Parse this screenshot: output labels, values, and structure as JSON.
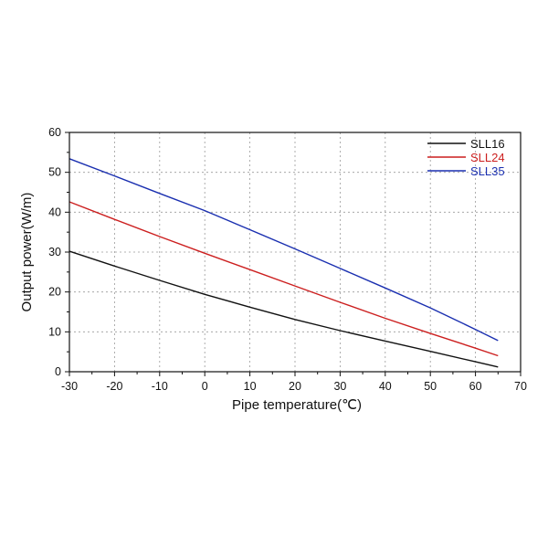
{
  "chart_data": {
    "type": "line",
    "xlabel": "Pipe temperature(℃)",
    "ylabel": "Output power(W/m)",
    "xlim": [
      -30,
      70
    ],
    "ylim": [
      0,
      60
    ],
    "xticks": [
      -30,
      -20,
      -10,
      0,
      10,
      20,
      30,
      40,
      50,
      60,
      70
    ],
    "yticks": [
      0,
      10,
      20,
      30,
      40,
      50,
      60
    ],
    "grid": true,
    "legend_position": "top-right",
    "series": [
      {
        "name": "SLL16",
        "color": "#111111",
        "x": [
          -30,
          -20,
          -10,
          0,
          10,
          20,
          30,
          40,
          50,
          60,
          65
        ],
        "y": [
          30.2,
          26.5,
          22.9,
          19.4,
          16.2,
          13.1,
          10.3,
          7.7,
          5.1,
          2.5,
          1.2
        ]
      },
      {
        "name": "SLL24",
        "color": "#cc1f1f",
        "x": [
          -30,
          -20,
          -10,
          0,
          10,
          20,
          30,
          40,
          50,
          60,
          65
        ],
        "y": [
          42.6,
          38.2,
          33.9,
          29.7,
          25.6,
          21.5,
          17.4,
          13.4,
          9.6,
          5.9,
          4.0
        ]
      },
      {
        "name": "SLL35",
        "color": "#1a2fb0",
        "x": [
          -30,
          -20,
          -10,
          0,
          10,
          20,
          30,
          40,
          50,
          60,
          65
        ],
        "y": [
          53.4,
          49.1,
          44.7,
          40.4,
          35.6,
          30.8,
          25.9,
          21.0,
          16.0,
          10.6,
          7.8
        ]
      }
    ]
  }
}
